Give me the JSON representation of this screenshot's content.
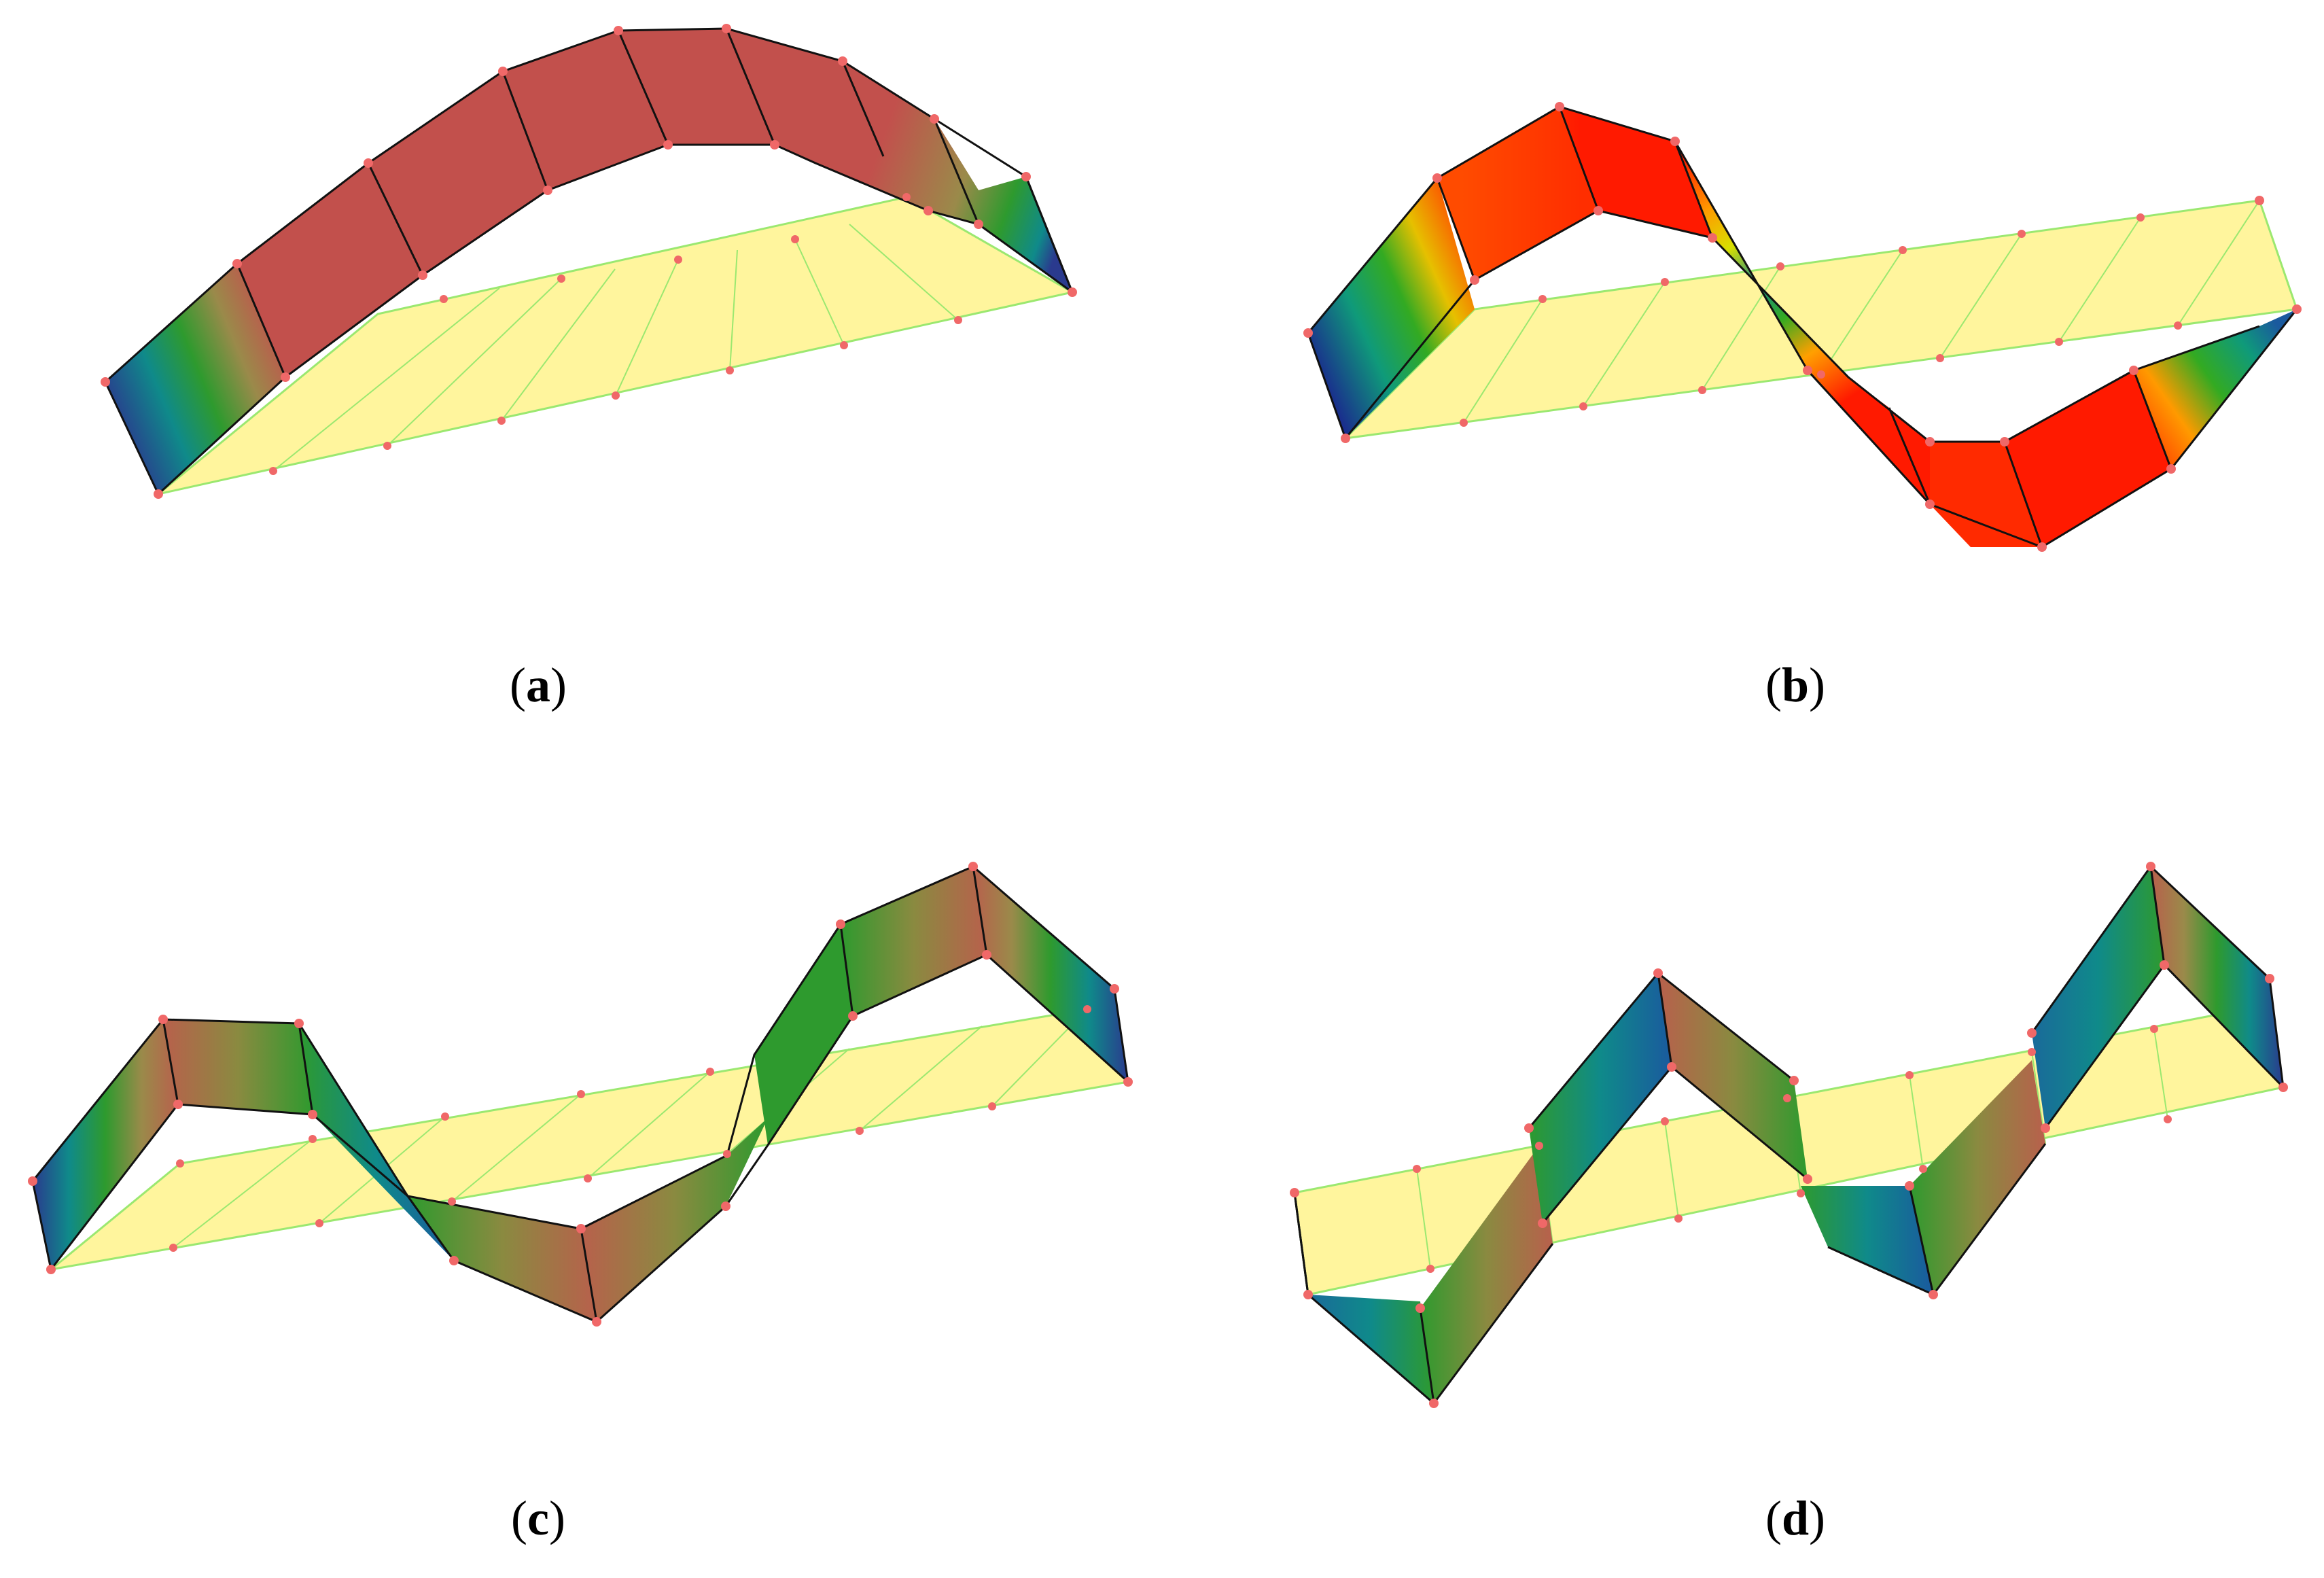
{
  "panels": [
    {
      "id": "a",
      "label": "a"
    },
    {
      "id": "b",
      "label": "b"
    },
    {
      "id": "c",
      "label": "c"
    },
    {
      "id": "d",
      "label": "d"
    }
  ],
  "colors": {
    "flat_strip_fill": "#fff59d",
    "flat_strip_edge": "#9be870",
    "node": "#f06868",
    "edge": "#111111",
    "palette_blue": "#2a3a8e",
    "palette_teal": "#0f8a8a",
    "palette_green": "#2e9a2e",
    "palette_olive": "#9a8a4a",
    "palette_brick": "#c2504c",
    "palette_red": "#ff1a00",
    "palette_orange": "#ff7a00",
    "palette_yellow": "#e6e600"
  },
  "icons": {
    "node": "node-dot"
  }
}
